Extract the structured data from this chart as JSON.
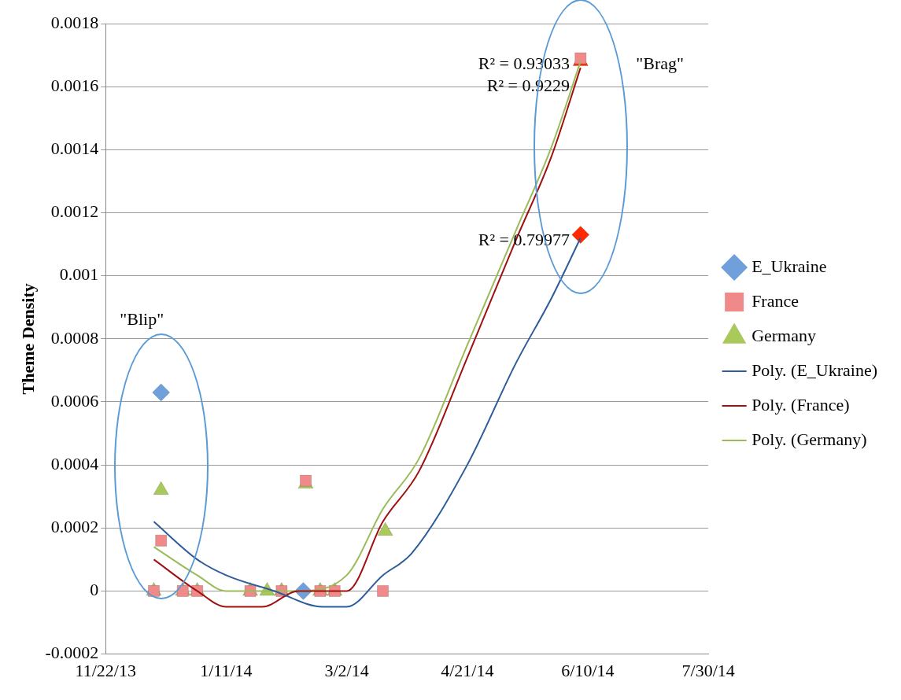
{
  "chart_data": {
    "type": "scatter",
    "ylabel": "Theme Density",
    "xlim": [
      "2013-11-22",
      "2014-07-30"
    ],
    "xticks": [
      {
        "value": "2013-11-22",
        "label": "11/22/13"
      },
      {
        "value": "2014-01-11",
        "label": "1/11/14"
      },
      {
        "value": "2014-03-02",
        "label": "3/2/14"
      },
      {
        "value": "2014-04-21",
        "label": "4/21/14"
      },
      {
        "value": "2014-06-10",
        "label": "6/10/14"
      },
      {
        "value": "2014-07-30",
        "label": "7/30/14"
      }
    ],
    "ylim": [
      -0.0002,
      0.0018
    ],
    "yticks": [
      -0.0002,
      0,
      0.0002,
      0.0004,
      0.0006,
      0.0008,
      0.001,
      0.0012,
      0.0014,
      0.0016,
      0.0018
    ],
    "grid": "y",
    "legend": "right",
    "series": [
      {
        "name": "E_Ukraine",
        "marker": "diamond",
        "color": "#6fa0dc",
        "x": [
          "2013-12-15",
          "2014-02-12",
          "2014-06-07"
        ],
        "values": [
          0.00063,
          0,
          0.00113
        ],
        "colors": [
          "#6fa0dc",
          "#6fa0dc",
          "#ff2a00"
        ]
      },
      {
        "name": "France",
        "marker": "square",
        "color": "#f08a8a",
        "x": [
          "2013-12-12",
          "2013-12-15",
          "2013-12-24",
          "2013-12-30",
          "2014-01-21",
          "2014-02-03",
          "2014-02-13",
          "2014-02-19",
          "2014-02-25",
          "2014-03-17",
          "2014-06-07"
        ],
        "values": [
          0,
          0.00016,
          0,
          0,
          0,
          0,
          0.00035,
          0,
          0,
          0,
          0.00169
        ],
        "colors": [
          "#f08a8a",
          "#f08a8a",
          "#f08a8a",
          "#f08a8a",
          "#f08a8a",
          "#f08a8a",
          "#f08a8a",
          "#f08a8a",
          "#f08a8a",
          "#f08a8a",
          "#f08a8a"
        ]
      },
      {
        "name": "Germany",
        "marker": "triangle",
        "color": "#a9c95a",
        "x": [
          "2013-12-12",
          "2013-12-15",
          "2013-12-24",
          "2013-12-30",
          "2014-01-21",
          "2014-01-28",
          "2014-02-03",
          "2014-02-13",
          "2014-02-19",
          "2014-02-25",
          "2014-03-18",
          "2014-06-07"
        ],
        "values": [
          0,
          0.00032,
          0,
          0,
          0,
          0,
          0,
          0.00034,
          0,
          0,
          0.00019,
          0.00168
        ],
        "colors": [
          "#a9c95a",
          "#a9c95a",
          "#a9c95a",
          "#a9c95a",
          "#a9c95a",
          "#a9c95a",
          "#a9c95a",
          "#a9c95a",
          "#a9c95a",
          "#a9c95a",
          "#a9c95a",
          "#ff2a00"
        ]
      },
      {
        "name": "Poly. (E_Ukraine)",
        "type": "line",
        "marker": "none",
        "color": "#2e5c9a",
        "x": [
          "2013-12-12",
          "2013-12-30",
          "2014-01-11",
          "2014-01-31",
          "2014-02-20",
          "2014-03-02",
          "2014-03-17",
          "2014-03-29",
          "2014-04-21",
          "2014-05-11",
          "2014-05-26",
          "2014-06-07"
        ],
        "values": [
          0.00022,
          0.0001,
          5e-05,
          0,
          -5e-05,
          -5e-05,
          5e-05,
          0.00012,
          0.0004,
          0.00072,
          0.00093,
          0.00112
        ]
      },
      {
        "name": "Poly. (France)",
        "type": "line",
        "marker": "none",
        "color": "#a01010",
        "x": [
          "2013-12-12",
          "2013-12-30",
          "2014-01-11",
          "2014-01-26",
          "2014-02-10",
          "2014-03-02",
          "2014-03-17",
          "2014-04-01",
          "2014-04-21",
          "2014-05-11",
          "2014-05-26",
          "2014-06-07"
        ],
        "values": [
          0.0001,
          0,
          -5e-05,
          -5e-05,
          0,
          0,
          0.00022,
          0.00038,
          0.00074,
          0.00111,
          0.00138,
          0.00166
        ]
      },
      {
        "name": "Poly. (Germany)",
        "type": "line",
        "marker": "none",
        "color": "#9bbb59",
        "x": [
          "2013-12-12",
          "2013-12-30",
          "2014-01-11",
          "2014-01-21",
          "2014-02-10",
          "2014-03-02",
          "2014-03-17",
          "2014-04-01",
          "2014-04-21",
          "2014-05-11",
          "2014-05-26",
          "2014-06-07"
        ],
        "values": [
          0.00014,
          5e-05,
          0,
          0,
          0,
          5e-05,
          0.00026,
          0.00042,
          0.00078,
          0.00114,
          0.00141,
          0.00168
        ]
      }
    ],
    "annotations": [
      "\"Blip\"",
      "\"Brag\"",
      "R² = 0.93033",
      "R² = 0.9229",
      "R² = 0.79977"
    ]
  }
}
